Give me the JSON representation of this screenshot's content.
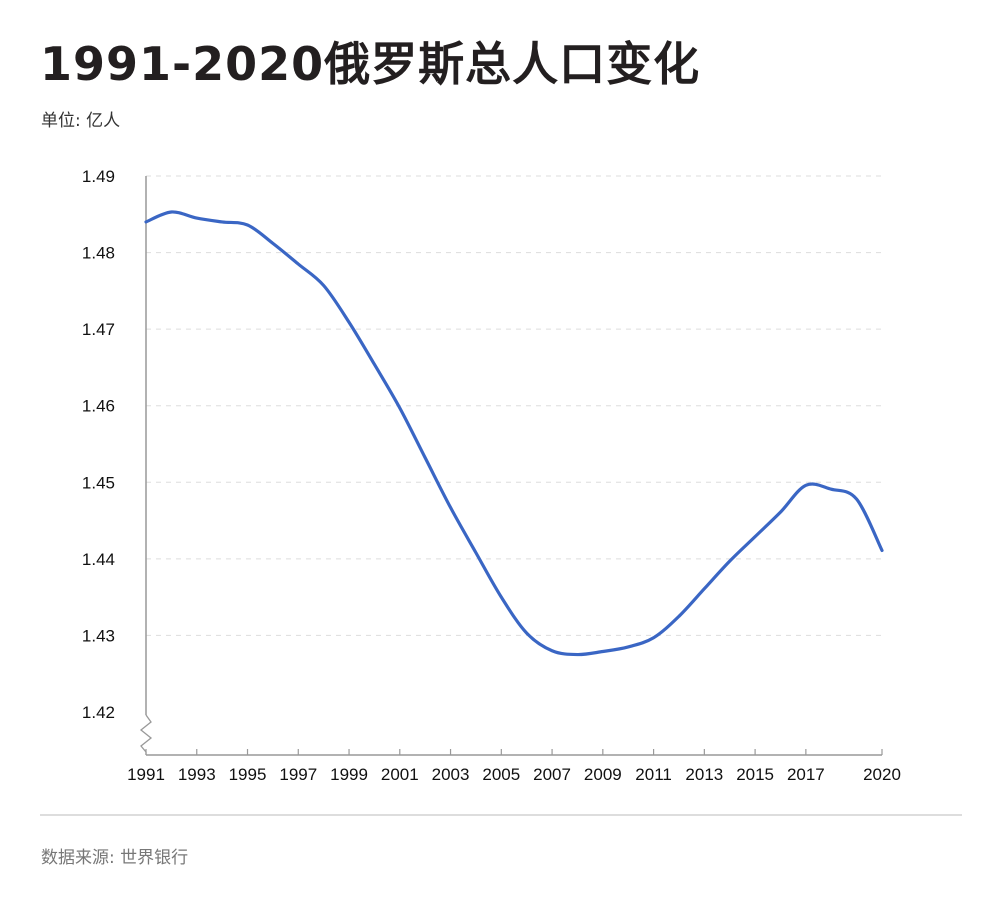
{
  "title": "1991-2020俄罗斯总人口变化",
  "unit_label": "单位: 亿人",
  "source_label": "数据来源: 世界银行",
  "colors": {
    "line": "#3a66c4",
    "axis": "#999999",
    "grid": "#dddddd"
  },
  "chart_data": {
    "type": "line",
    "x_ticks": [
      "1991",
      "1993",
      "1995",
      "1997",
      "1999",
      "2001",
      "2003",
      "2005",
      "2007",
      "2009",
      "2011",
      "2013",
      "2015",
      "2017",
      "2020"
    ],
    "y_ticks": [
      "1.49",
      "1.48",
      "1.47",
      "1.46",
      "1.45",
      "1.44",
      "1.43",
      "1.42"
    ],
    "xlim": [
      1991,
      2020
    ],
    "ylim": [
      1.42,
      1.49
    ],
    "axis_break": true,
    "grid": "horizontal-dashed",
    "series": [
      {
        "x": [
          1991,
          1992,
          1993,
          1994,
          1995,
          1996,
          1997,
          1998,
          1999,
          2000,
          2001,
          2002,
          2003,
          2004,
          2005,
          2006,
          2007,
          2008,
          2009,
          2010,
          2011,
          2012,
          2013,
          2014,
          2015,
          2016,
          2017,
          2018,
          2019,
          2020
        ],
        "values": [
          1.484,
          1.4853,
          1.4845,
          1.484,
          1.4836,
          1.4812,
          1.4785,
          1.4757,
          1.4709,
          1.4654,
          1.4597,
          1.4532,
          1.4467,
          1.4408,
          1.435,
          1.4303,
          1.428,
          1.4275,
          1.4279,
          1.4285,
          1.4297,
          1.4325,
          1.4361,
          1.4397,
          1.4429,
          1.4461,
          1.4496,
          1.4491,
          1.4478,
          1.4411
        ]
      }
    ]
  }
}
